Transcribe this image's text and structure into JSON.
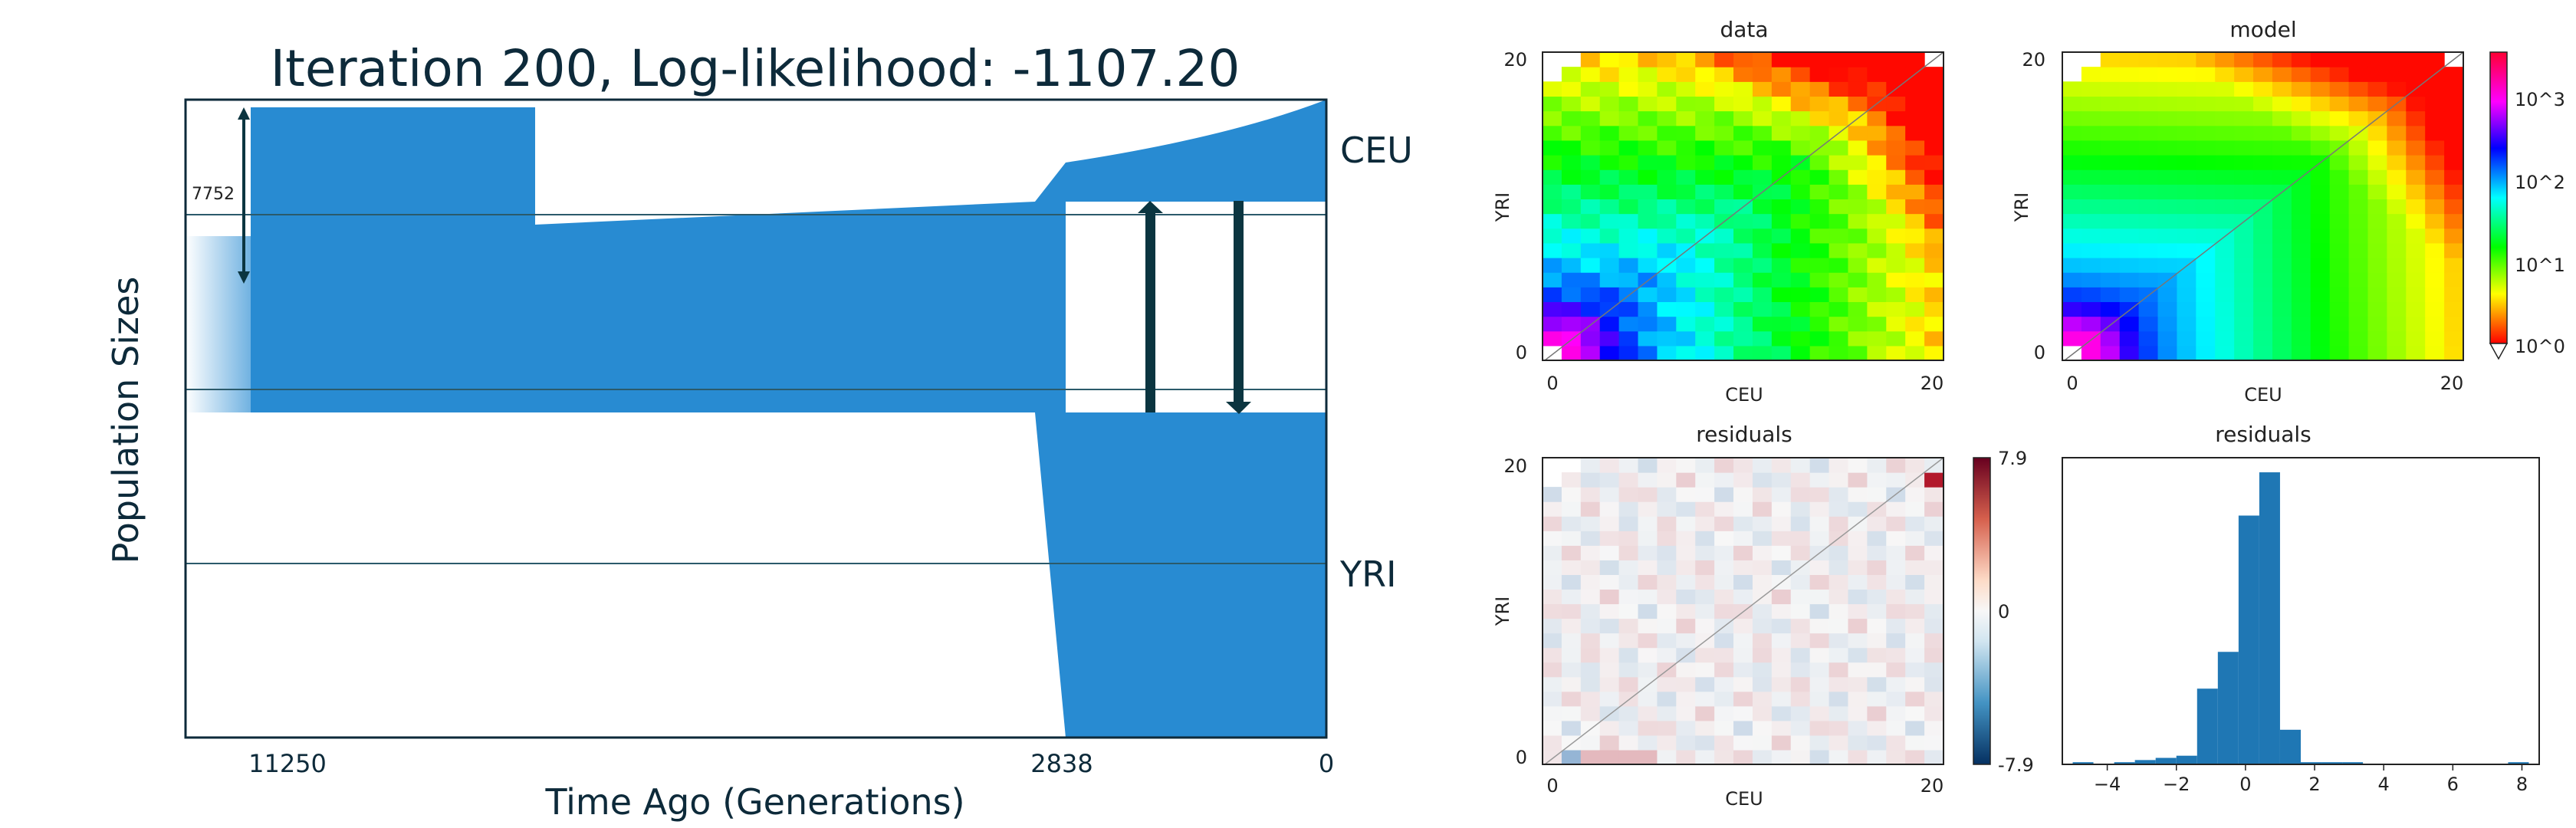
{
  "chart_data": [
    {
      "type": "area",
      "title": "Iteration 200, Log-likelihood: -1107.20",
      "xlabel": "Time Ago (Generations)",
      "ylabel": "Population Sizes",
      "x_ticks": [
        "11250",
        "2838",
        "0"
      ],
      "populations": [
        "CEU",
        "YRI"
      ],
      "size_annotation": "7752",
      "colors": {
        "population": "#288bd2",
        "line": "#2b5a6b",
        "arrow": "#0b3540",
        "text": "#0d2a3a"
      },
      "migration_pulses": [
        {
          "direction": "YRI to CEU"
        },
        {
          "direction": "CEU to YRI"
        }
      ]
    },
    {
      "type": "heatmap",
      "title": "data",
      "xlabel": "CEU",
      "ylabel": "YRI",
      "x_ticks": [
        "0",
        "20"
      ],
      "y_ticks": [
        "0",
        "20"
      ],
      "colormap": "hsv",
      "scale": "log"
    },
    {
      "type": "heatmap",
      "title": "model",
      "xlabel": "CEU",
      "ylabel": "YRI",
      "x_ticks": [
        "0",
        "20"
      ],
      "y_ticks": [
        "0",
        "20"
      ],
      "colormap": "hsv",
      "scale": "log",
      "colorbar_ticks": [
        "10^3",
        "10^2",
        "10^1",
        "10^0"
      ]
    },
    {
      "type": "heatmap",
      "title": "residuals",
      "xlabel": "CEU",
      "ylabel": "YRI",
      "x_ticks": [
        "0",
        "20"
      ],
      "y_ticks": [
        "0",
        "20"
      ],
      "colormap": "RdBu_r",
      "colorbar_ticks": [
        "7.9",
        "0",
        "-7.9"
      ],
      "vmin": -7.9,
      "vmax": 7.9
    },
    {
      "type": "bar",
      "title": "residuals",
      "x_ticks": [
        "−4",
        "−2",
        "0",
        "2",
        "4",
        "6",
        "8"
      ],
      "bin_edges": [
        -5.0,
        -4.4,
        -3.8,
        -3.2,
        -2.6,
        -2.0,
        -1.4,
        -0.8,
        -0.2,
        0.4,
        1.0,
        1.6,
        2.2,
        2.8,
        3.4,
        4.0,
        4.6,
        5.2,
        5.8,
        6.4,
        7.0,
        7.6,
        8.2
      ],
      "counts": [
        1,
        0,
        1,
        2,
        3,
        4,
        35,
        52,
        115,
        135,
        16,
        1,
        1,
        1,
        0,
        0,
        0,
        0,
        0,
        0,
        0,
        1
      ],
      "xlim": [
        -5.3,
        8.5
      ],
      "color": "#1f77b4"
    }
  ]
}
